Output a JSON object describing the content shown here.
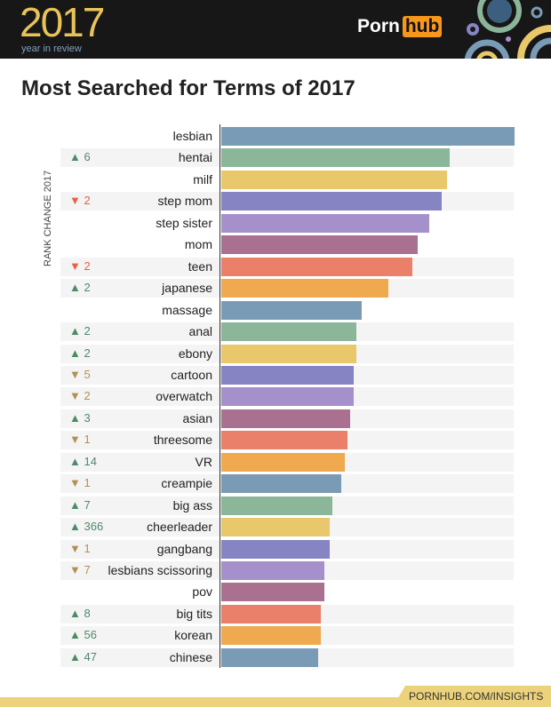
{
  "header": {
    "year": "2017",
    "subtitle": "year in review",
    "brand_left": "Porn",
    "brand_right": "hub"
  },
  "footer": {
    "url": "PORNHUB.COM/INSIGHTS"
  },
  "chart_data": {
    "type": "bar",
    "orientation": "horizontal",
    "title": "Most Searched for Terms of 2017",
    "ylabel": "RANK CHANGE 2017",
    "note": "",
    "categories": [
      "lesbian",
      "hentai",
      "milf",
      "step mom",
      "step sister",
      "mom",
      "teen",
      "japanese",
      "massage",
      "anal",
      "ebony",
      "cartoon",
      "overwatch",
      "asian",
      "threesome",
      "VR",
      "creampie",
      "big ass",
      "cheerleader",
      "gangbang",
      "lesbians scissoring",
      "pov",
      "big tits",
      "korean",
      "chinese"
    ],
    "values": [
      100,
      78,
      77,
      75,
      71,
      67,
      65,
      57,
      48,
      46,
      46,
      45,
      45,
      44,
      43,
      42,
      41,
      38,
      37,
      37,
      35,
      35,
      34,
      34,
      33
    ],
    "rank_change": [
      null,
      "▲ 6",
      null,
      "▼ 2",
      null,
      null,
      "▼ 2",
      "▲ 2",
      null,
      "▲ 2",
      "▲ 2",
      "▼ 5",
      "▼ 2",
      "▲ 3",
      "▼ 1",
      "▲ 14",
      "▼ 1",
      "▲ 7",
      "▲ 366",
      "▼ 1",
      "▼ 7",
      null,
      "▲ 8",
      "▲ 56",
      "▲ 47"
    ],
    "colors": [
      "#7a9bb6",
      "#8cb69a",
      "#e8c86a",
      "#8784c3",
      "#a590cc",
      "#a9718f",
      "#ea806a",
      "#efa94e"
    ],
    "up_color": "#4f8a68",
    "down_color_strong": "#e8604a",
    "down_color": "#b09058"
  }
}
